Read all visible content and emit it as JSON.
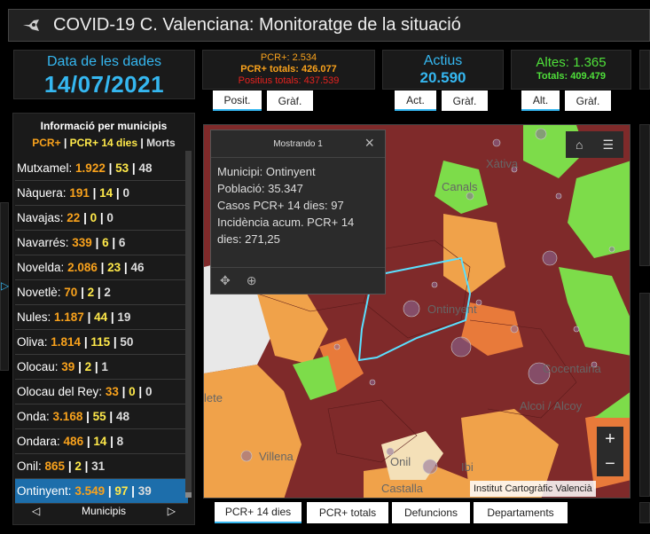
{
  "header": {
    "title": "COVID-19 C. Valenciana: Monitoratge de la situació"
  },
  "date": {
    "label": "Data de les dades",
    "value": "14/07/2021"
  },
  "pcr": {
    "line1": "PCR+: 2.534",
    "line2": "PCR+ totals: 426.077",
    "line3": "Positius totals: 437.539",
    "tab1": "Posit.",
    "tab2": "Gràf."
  },
  "actius": {
    "label": "Actius",
    "value": "20.590",
    "tab1": "Act.",
    "tab2": "Gràf."
  },
  "altes": {
    "label": "Altes: 1.365",
    "value": "Totals: 409.479",
    "tab1": "Alt.",
    "tab2": "Gràf."
  },
  "side": {
    "title": "Informació per municipis",
    "legend_pcr": "PCR+",
    "legend_sep1": "|",
    "legend_p14": "PCR+ 14 dies",
    "legend_sep2": "|",
    "legend_morts": "Morts",
    "nav_label": "Municipis",
    "rows": [
      {
        "name": "Mutxamel:",
        "pcr": "1.922",
        "p14": "53",
        "morts": "48"
      },
      {
        "name": "Nàquera:",
        "pcr": "191",
        "p14": "14",
        "morts": "0"
      },
      {
        "name": "Navajas:",
        "pcr": "22",
        "p14": "0",
        "morts": "0"
      },
      {
        "name": "Navarrés:",
        "pcr": "339",
        "p14": "6",
        "morts": "6"
      },
      {
        "name": "Novelda:",
        "pcr": "2.086",
        "p14": "23",
        "morts": "46"
      },
      {
        "name": "Novetlè:",
        "pcr": "70",
        "p14": "2",
        "morts": "2"
      },
      {
        "name": "Nules:",
        "pcr": "1.187",
        "p14": "44",
        "morts": "19"
      },
      {
        "name": "Oliva:",
        "pcr": "1.814",
        "p14": "115",
        "morts": "50"
      },
      {
        "name": "Olocau:",
        "pcr": "39",
        "p14": "2",
        "morts": "1"
      },
      {
        "name": "Olocau del Rey:",
        "pcr": "33",
        "p14": "0",
        "morts": "0"
      },
      {
        "name": "Onda:",
        "pcr": "3.168",
        "p14": "55",
        "morts": "48"
      },
      {
        "name": "Ondara:",
        "pcr": "486",
        "p14": "14",
        "morts": "8"
      },
      {
        "name": "Onil:",
        "pcr": "865",
        "p14": "2",
        "morts": "31"
      },
      {
        "name": "Ontinyent:",
        "pcr": "3.549",
        "p14": "97",
        "morts": "39"
      }
    ]
  },
  "popup": {
    "header": "Mostrando 1",
    "line1": "Municipi: Ontinyent",
    "line2": "Població: 35.347",
    "line3": "Casos PCR+ 14 dies: 97",
    "line4": "Incidència acum. PCR+ 14",
    "line5": "dies: 271,25"
  },
  "map_labels": {
    "xativa": "Xàtiva",
    "canals": "Canals",
    "ontinyent": "Ontinyent",
    "cocentaina": "Cocentaina",
    "alcoi": "Alcoi / Alcoy",
    "villena": "Villena",
    "onil": "Onil",
    "ibi": "Ibi",
    "castalla": "Castalla",
    "lete": "lete"
  },
  "attribution": "Institut Cartogràfic Valencià",
  "bottom_tabs": [
    "PCR+ 14 dies",
    "PCR+ totals",
    "Defuncions",
    "Departaments"
  ],
  "colors": {
    "accent": "#35b7f0",
    "orange": "#f9a21c",
    "yellow": "#ffe94a",
    "green": "#4fe03a",
    "red": "#e8231f",
    "selected": "#1d6eab"
  }
}
